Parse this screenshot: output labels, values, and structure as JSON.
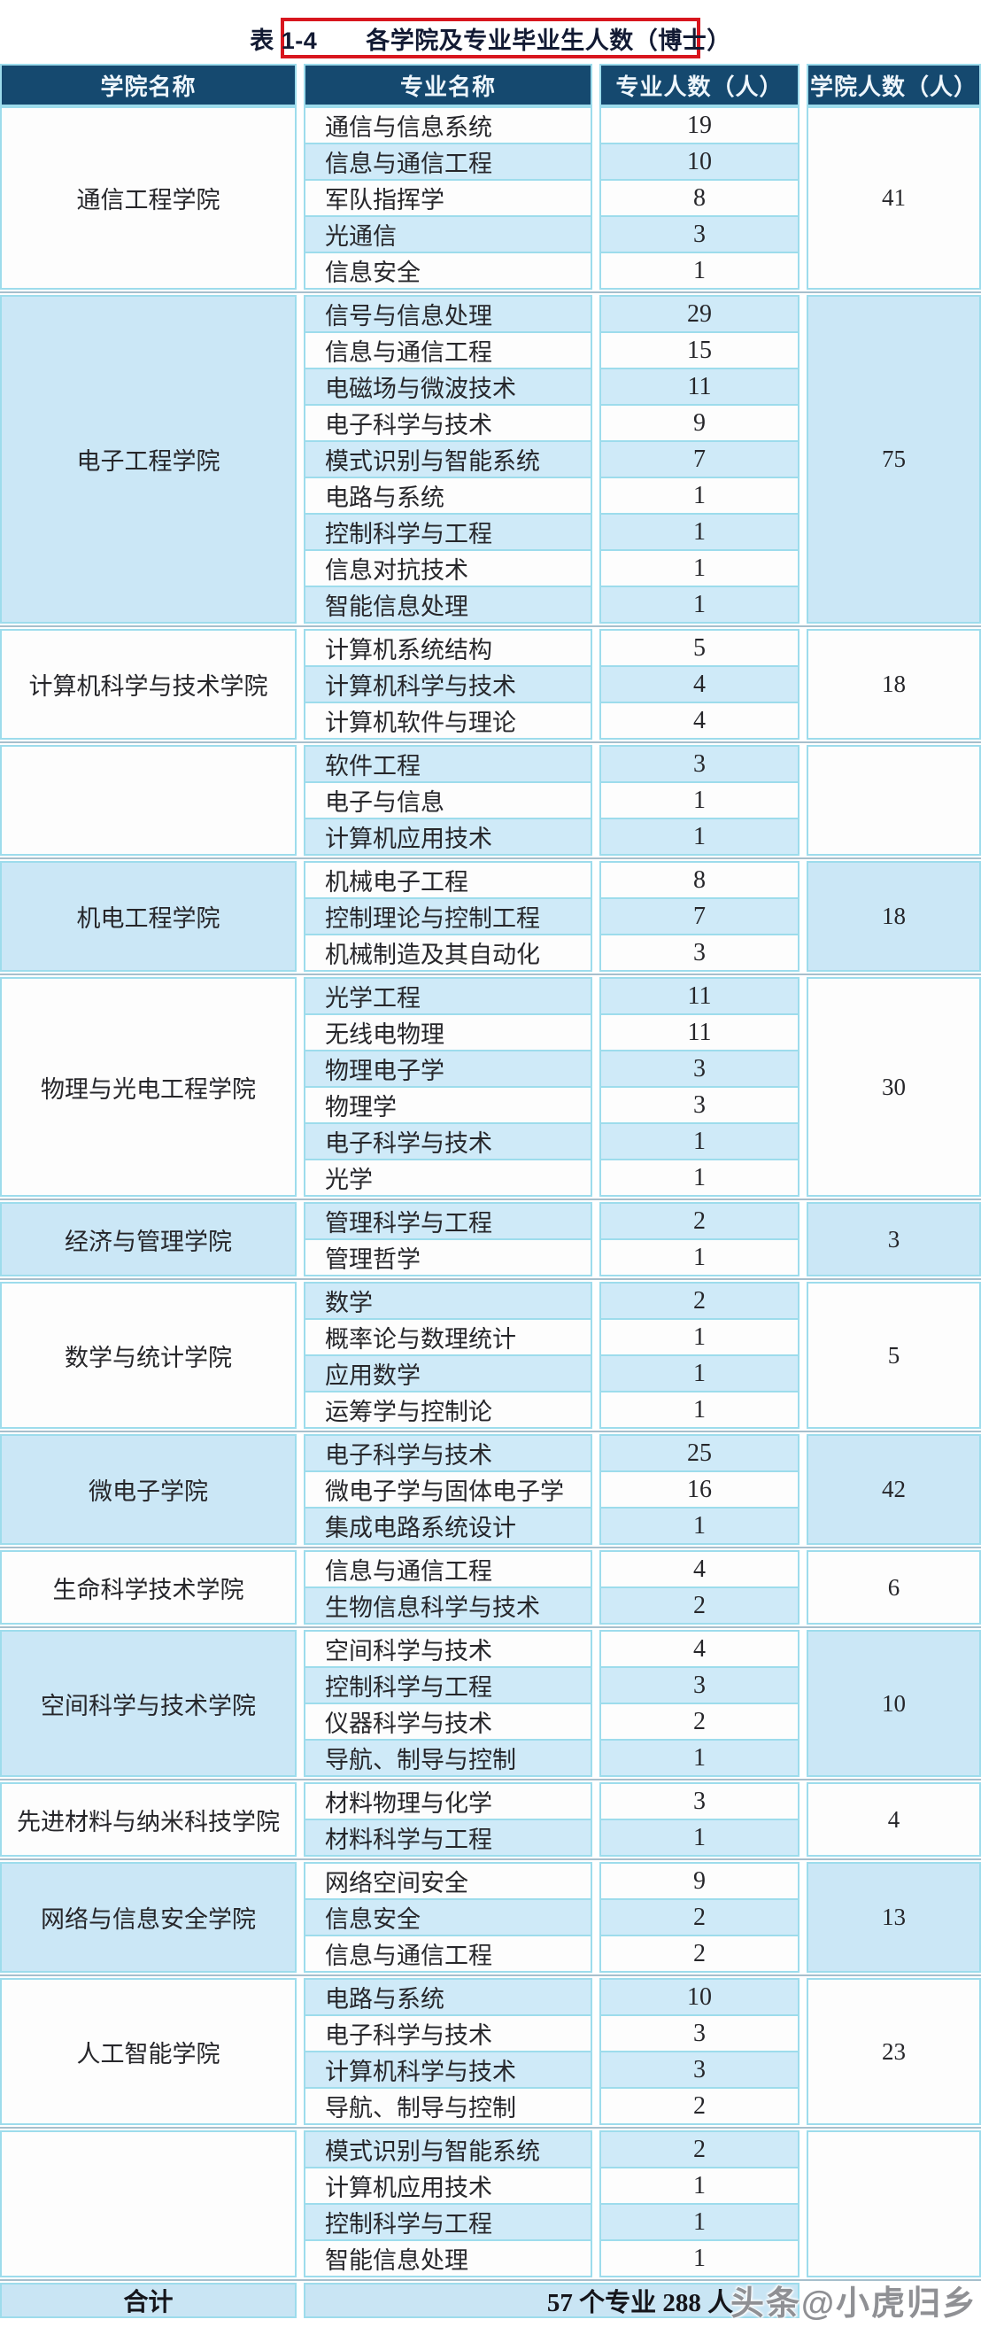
{
  "title": "表 1-4　　各学院及专业毕业生人数（博士）",
  "header": {
    "college": "学院名称",
    "major": "专业名称",
    "major_count": "专业人数（人）",
    "college_count": "学院人数（人）"
  },
  "footer": {
    "label": "合计",
    "value": "57 个专业 288 人"
  },
  "watermark": "头条@小虎归乡",
  "colors": {
    "header_bg": "#15496f",
    "row_white": "#fdfdfd",
    "row_blue": "#cfeaf8",
    "college_blue": "#cbe7f6",
    "total_row_bg": "#c9e5f4",
    "cell_border": "#9ddcec",
    "group_separator": "#a6bfcc",
    "title_border_red": "#d8161e"
  },
  "groups": [
    {
      "college": "通信工程学院",
      "total": "41",
      "shade": "white",
      "majors": [
        {
          "name": "通信与信息系统",
          "count": "19"
        },
        {
          "name": "信息与通信工程",
          "count": "10"
        },
        {
          "name": "军队指挥学",
          "count": "8"
        },
        {
          "name": "光通信",
          "count": "3"
        },
        {
          "name": "信息安全",
          "count": "1"
        }
      ]
    },
    {
      "college": "电子工程学院",
      "total": "75",
      "shade": "blue",
      "majors": [
        {
          "name": "信号与信息处理",
          "count": "29"
        },
        {
          "name": "信息与通信工程",
          "count": "15"
        },
        {
          "name": "电磁场与微波技术",
          "count": "11"
        },
        {
          "name": "电子科学与技术",
          "count": "9"
        },
        {
          "name": "模式识别与智能系统",
          "count": "7"
        },
        {
          "name": "电路与系统",
          "count": "1"
        },
        {
          "name": "控制科学与工程",
          "count": "1"
        },
        {
          "name": "信息对抗技术",
          "count": "1"
        },
        {
          "name": "智能信息处理",
          "count": "1"
        }
      ]
    },
    {
      "college": "计算机科学与技术学院",
      "total": "18",
      "shade": "white",
      "majors": [
        {
          "name": "计算机系统结构",
          "count": "5"
        },
        {
          "name": "计算机科学与技术",
          "count": "4"
        },
        {
          "name": "计算机软件与理论",
          "count": "4"
        }
      ]
    },
    {
      "college": "",
      "total": "",
      "shade": "white",
      "majors": [
        {
          "name": "软件工程",
          "count": "3"
        },
        {
          "name": "电子与信息",
          "count": "1"
        },
        {
          "name": "计算机应用技术",
          "count": "1"
        }
      ]
    },
    {
      "college": "机电工程学院",
      "total": "18",
      "shade": "blue",
      "majors": [
        {
          "name": "机械电子工程",
          "count": "8"
        },
        {
          "name": "控制理论与控制工程",
          "count": "7"
        },
        {
          "name": "机械制造及其自动化",
          "count": "3"
        }
      ]
    },
    {
      "college": "物理与光电工程学院",
      "total": "30",
      "shade": "white",
      "majors": [
        {
          "name": "光学工程",
          "count": "11"
        },
        {
          "name": "无线电物理",
          "count": "11"
        },
        {
          "name": "物理电子学",
          "count": "3"
        },
        {
          "name": "物理学",
          "count": "3"
        },
        {
          "name": "电子科学与技术",
          "count": "1"
        },
        {
          "name": "光学",
          "count": "1"
        }
      ]
    },
    {
      "college": "经济与管理学院",
      "total": "3",
      "shade": "blue",
      "majors": [
        {
          "name": "管理科学与工程",
          "count": "2"
        },
        {
          "name": "管理哲学",
          "count": "1"
        }
      ]
    },
    {
      "college": "数学与统计学院",
      "total": "5",
      "shade": "white",
      "majors": [
        {
          "name": "数学",
          "count": "2"
        },
        {
          "name": "概率论与数理统计",
          "count": "1"
        },
        {
          "name": "应用数学",
          "count": "1"
        },
        {
          "name": "运筹学与控制论",
          "count": "1"
        }
      ]
    },
    {
      "college": "微电子学院",
      "total": "42",
      "shade": "blue",
      "majors": [
        {
          "name": "电子科学与技术",
          "count": "25"
        },
        {
          "name": "微电子学与固体电子学",
          "count": "16"
        },
        {
          "name": "集成电路系统设计",
          "count": "1"
        }
      ]
    },
    {
      "college": "生命科学技术学院",
      "total": "6",
      "shade": "white",
      "majors": [
        {
          "name": "信息与通信工程",
          "count": "4"
        },
        {
          "name": "生物信息科学与技术",
          "count": "2"
        }
      ]
    },
    {
      "college": "空间科学与技术学院",
      "total": "10",
      "shade": "blue",
      "majors": [
        {
          "name": "空间科学与技术",
          "count": "4"
        },
        {
          "name": "控制科学与工程",
          "count": "3"
        },
        {
          "name": "仪器科学与技术",
          "count": "2"
        },
        {
          "name": "导航、制导与控制",
          "count": "1"
        }
      ]
    },
    {
      "college": "先进材料与纳米科技学院",
      "total": "4",
      "shade": "white",
      "majors": [
        {
          "name": "材料物理与化学",
          "count": "3"
        },
        {
          "name": "材料科学与工程",
          "count": "1"
        }
      ]
    },
    {
      "college": "网络与信息安全学院",
      "total": "13",
      "shade": "blue",
      "majors": [
        {
          "name": "网络空间安全",
          "count": "9"
        },
        {
          "name": "信息安全",
          "count": "2"
        },
        {
          "name": "信息与通信工程",
          "count": "2"
        }
      ]
    },
    {
      "college": "人工智能学院",
      "total": "23",
      "shade": "white",
      "majors": [
        {
          "name": "电路与系统",
          "count": "10"
        },
        {
          "name": "电子科学与技术",
          "count": "3"
        },
        {
          "name": "计算机科学与技术",
          "count": "3"
        },
        {
          "name": "导航、制导与控制",
          "count": "2"
        }
      ]
    },
    {
      "college": "",
      "total": "",
      "shade": "white",
      "majors": [
        {
          "name": "模式识别与智能系统",
          "count": "2"
        },
        {
          "name": "计算机应用技术",
          "count": "1"
        },
        {
          "name": "控制科学与工程",
          "count": "1"
        },
        {
          "name": "智能信息处理",
          "count": "1"
        }
      ]
    }
  ]
}
